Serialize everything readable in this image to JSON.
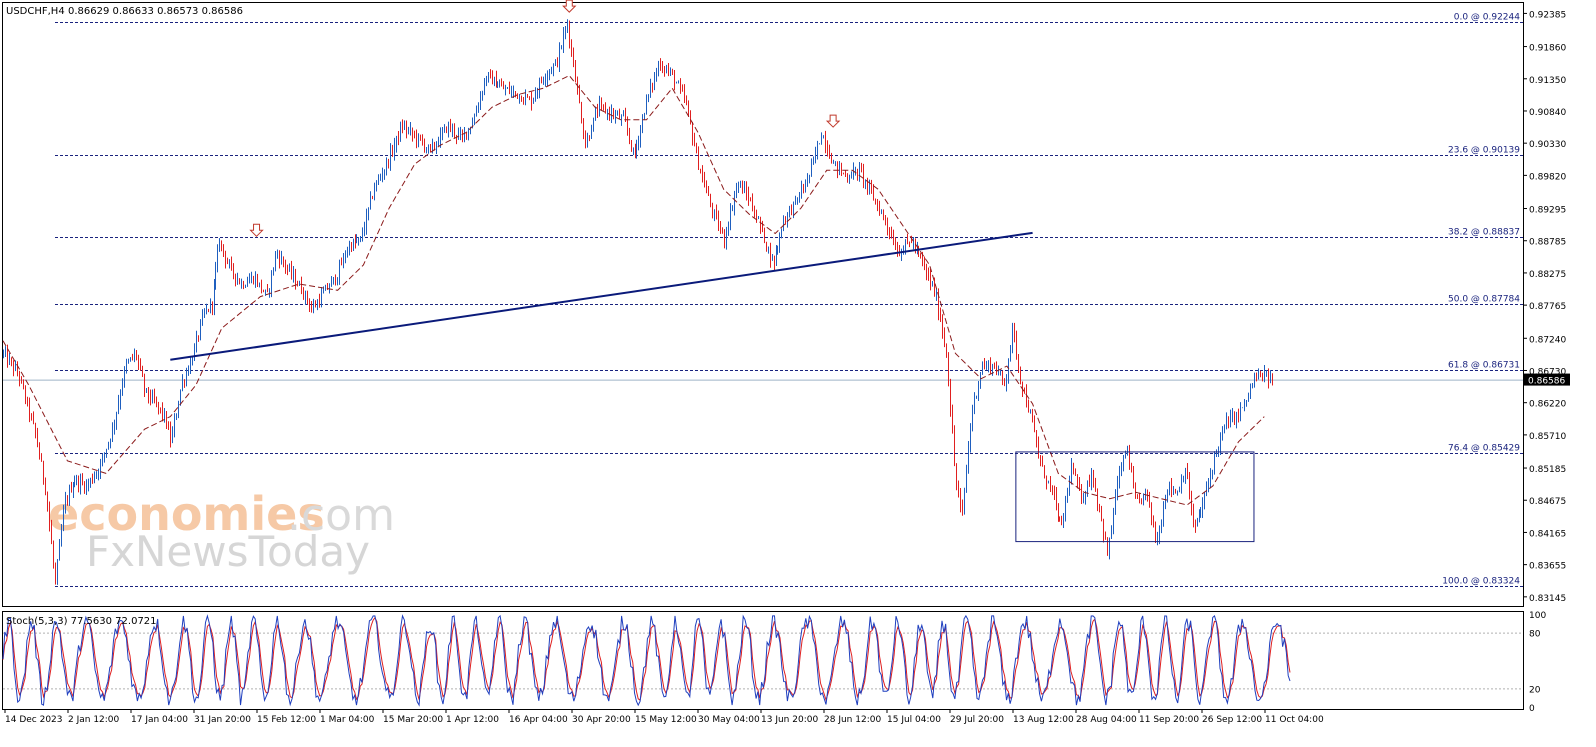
{
  "chart_data": {
    "type": "candlestick",
    "header": {
      "symbol": "USDCHF,H4",
      "ohlc": "0.86629 0.86633 0.86573 0.86586"
    },
    "price_axis": {
      "ticks": [
        "0.92385",
        "0.91860",
        "0.91350",
        "0.90840",
        "0.90330",
        "0.89820",
        "0.89295",
        "0.88785",
        "0.88275",
        "0.87765",
        "0.87240",
        "0.86730",
        "0.86220",
        "0.85710",
        "0.85185",
        "0.84675",
        "0.84165",
        "0.83655",
        "0.83145"
      ],
      "ylim": [
        0.83,
        0.9255
      ],
      "current_price": "0.86586"
    },
    "time_axis": {
      "ticks": [
        "14 Dec 2023",
        "2 Jan 12:00",
        "17 Jan 04:00",
        "31 Jan 20:00",
        "15 Feb 12:00",
        "1 Mar 04:00",
        "15 Mar 20:00",
        "1 Apr 12:00",
        "16 Apr 04:00",
        "30 Apr 20:00",
        "15 May 12:00",
        "30 May 04:00",
        "13 Jun 20:00",
        "28 Jun 12:00",
        "15 Jul 04:00",
        "29 Jul 20:00",
        "13 Aug 12:00",
        "28 Aug 04:00",
        "11 Sep 20:00",
        "26 Sep 12:00",
        "11 Oct 04:00"
      ]
    },
    "fibonacci": [
      {
        "label": "0.0 @ 0.92244",
        "price": 0.92244
      },
      {
        "label": "23.6 @ 0.90139",
        "price": 0.90139
      },
      {
        "label": "38.2 @ 0.88837",
        "price": 0.88837
      },
      {
        "label": "50.0 @ 0.87784",
        "price": 0.87784
      },
      {
        "label": "61.8 @ 0.86731",
        "price": 0.86731
      },
      {
        "label": "76.4 @ 0.85429",
        "price": 0.85429
      },
      {
        "label": "100.0 @ 0.83324",
        "price": 0.83324
      }
    ],
    "price_path": [
      [
        0,
        0.87
      ],
      [
        0.012,
        0.8665
      ],
      [
        0.025,
        0.857
      ],
      [
        0.033,
        0.848
      ],
      [
        0.04,
        0.8335
      ],
      [
        0.047,
        0.846
      ],
      [
        0.055,
        0.85
      ],
      [
        0.065,
        0.849
      ],
      [
        0.075,
        0.852
      ],
      [
        0.085,
        0.858
      ],
      [
        0.095,
        0.868
      ],
      [
        0.103,
        0.87
      ],
      [
        0.11,
        0.864
      ],
      [
        0.118,
        0.862
      ],
      [
        0.125,
        0.86
      ],
      [
        0.13,
        0.856
      ],
      [
        0.138,
        0.865
      ],
      [
        0.146,
        0.869
      ],
      [
        0.155,
        0.876
      ],
      [
        0.162,
        0.878
      ],
      [
        0.168,
        0.888
      ],
      [
        0.175,
        0.884
      ],
      [
        0.185,
        0.881
      ],
      [
        0.195,
        0.882
      ],
      [
        0.205,
        0.879
      ],
      [
        0.212,
        0.886
      ],
      [
        0.222,
        0.883
      ],
      [
        0.232,
        0.88
      ],
      [
        0.24,
        0.877
      ],
      [
        0.25,
        0.88
      ],
      [
        0.258,
        0.882
      ],
      [
        0.268,
        0.887
      ],
      [
        0.278,
        0.888
      ],
      [
        0.288,
        0.896
      ],
      [
        0.298,
        0.9
      ],
      [
        0.31,
        0.906
      ],
      [
        0.322,
        0.904
      ],
      [
        0.332,
        0.902
      ],
      [
        0.345,
        0.906
      ],
      [
        0.356,
        0.904
      ],
      [
        0.365,
        0.907
      ],
      [
        0.375,
        0.914
      ],
      [
        0.388,
        0.912
      ],
      [
        0.4,
        0.911
      ],
      [
        0.41,
        0.91
      ],
      [
        0.42,
        0.914
      ],
      [
        0.43,
        0.916
      ],
      [
        0.438,
        0.9224
      ],
      [
        0.445,
        0.913
      ],
      [
        0.452,
        0.903
      ],
      [
        0.462,
        0.909
      ],
      [
        0.472,
        0.908
      ],
      [
        0.482,
        0.907
      ],
      [
        0.49,
        0.901
      ],
      [
        0.5,
        0.91
      ],
      [
        0.51,
        0.916
      ],
      [
        0.52,
        0.914
      ],
      [
        0.53,
        0.91
      ],
      [
        0.54,
        0.9
      ],
      [
        0.55,
        0.893
      ],
      [
        0.56,
        0.888
      ],
      [
        0.57,
        0.897
      ],
      [
        0.578,
        0.895
      ],
      [
        0.588,
        0.89
      ],
      [
        0.598,
        0.884
      ],
      [
        0.606,
        0.891
      ],
      [
        0.616,
        0.894
      ],
      [
        0.626,
        0.898
      ],
      [
        0.636,
        0.905
      ],
      [
        0.645,
        0.9
      ],
      [
        0.655,
        0.898
      ],
      [
        0.665,
        0.899
      ],
      [
        0.675,
        0.895
      ],
      [
        0.685,
        0.891
      ],
      [
        0.695,
        0.886
      ],
      [
        0.705,
        0.888
      ],
      [
        0.715,
        0.884
      ],
      [
        0.725,
        0.879
      ],
      [
        0.733,
        0.87
      ],
      [
        0.74,
        0.85
      ],
      [
        0.745,
        0.844
      ],
      [
        0.752,
        0.86
      ],
      [
        0.76,
        0.868
      ],
      [
        0.77,
        0.868
      ],
      [
        0.778,
        0.865
      ],
      [
        0.784,
        0.874
      ],
      [
        0.79,
        0.866
      ],
      [
        0.798,
        0.86
      ],
      [
        0.806,
        0.852
      ],
      [
        0.815,
        0.848
      ],
      [
        0.822,
        0.842
      ],
      [
        0.83,
        0.852
      ],
      [
        0.838,
        0.847
      ],
      [
        0.846,
        0.851
      ],
      [
        0.853,
        0.844
      ],
      [
        0.858,
        0.838
      ],
      [
        0.866,
        0.85
      ],
      [
        0.873,
        0.855
      ],
      [
        0.88,
        0.846
      ],
      [
        0.888,
        0.848
      ],
      [
        0.896,
        0.84
      ],
      [
        0.904,
        0.849
      ],
      [
        0.912,
        0.848
      ],
      [
        0.918,
        0.852
      ],
      [
        0.925,
        0.842
      ],
      [
        0.932,
        0.846
      ],
      [
        0.942,
        0.854
      ],
      [
        0.95,
        0.859
      ],
      [
        0.958,
        0.86
      ],
      [
        0.965,
        0.862
      ],
      [
        0.972,
        0.866
      ],
      [
        0.98,
        0.8665
      ],
      [
        0.986,
        0.8658
      ]
    ],
    "moving_average": [
      [
        0,
        0.872
      ],
      [
        0.02,
        0.865
      ],
      [
        0.05,
        0.853
      ],
      [
        0.08,
        0.851
      ],
      [
        0.11,
        0.858
      ],
      [
        0.13,
        0.86
      ],
      [
        0.15,
        0.865
      ],
      [
        0.17,
        0.874
      ],
      [
        0.2,
        0.879
      ],
      [
        0.23,
        0.881
      ],
      [
        0.26,
        0.88
      ],
      [
        0.28,
        0.884
      ],
      [
        0.3,
        0.893
      ],
      [
        0.32,
        0.9
      ],
      [
        0.34,
        0.903
      ],
      [
        0.36,
        0.905
      ],
      [
        0.38,
        0.909
      ],
      [
        0.4,
        0.911
      ],
      [
        0.42,
        0.912
      ],
      [
        0.44,
        0.914
      ],
      [
        0.46,
        0.909
      ],
      [
        0.48,
        0.907
      ],
      [
        0.5,
        0.907
      ],
      [
        0.52,
        0.912
      ],
      [
        0.54,
        0.905
      ],
      [
        0.56,
        0.896
      ],
      [
        0.58,
        0.892
      ],
      [
        0.6,
        0.889
      ],
      [
        0.62,
        0.893
      ],
      [
        0.64,
        0.899
      ],
      [
        0.66,
        0.899
      ],
      [
        0.68,
        0.896
      ],
      [
        0.7,
        0.89
      ],
      [
        0.72,
        0.884
      ],
      [
        0.74,
        0.87
      ],
      [
        0.76,
        0.866
      ],
      [
        0.78,
        0.868
      ],
      [
        0.8,
        0.862
      ],
      [
        0.82,
        0.851
      ],
      [
        0.84,
        0.848
      ],
      [
        0.86,
        0.847
      ],
      [
        0.88,
        0.848
      ],
      [
        0.9,
        0.847
      ],
      [
        0.92,
        0.846
      ],
      [
        0.94,
        0.849
      ],
      [
        0.96,
        0.856
      ],
      [
        0.98,
        0.86
      ]
    ],
    "neckline": {
      "x": [
        0.13,
        0.8
      ],
      "y": [
        0.869,
        0.8891
      ]
    },
    "range_box": {
      "x": [
        0.787,
        0.972
      ],
      "y": [
        0.8402,
        0.8544
      ]
    },
    "arrows": [
      [
        0.197,
        0.8895
      ],
      [
        0.44,
        0.925
      ],
      [
        0.645,
        0.9068
      ]
    ],
    "stochastic": {
      "label": "Stoch(5,3,3) 77.5630 72.0721",
      "ticks": [
        "100",
        "80",
        "20",
        "0"
      ],
      "levels": [
        80,
        20
      ],
      "ylim": [
        0,
        100
      ]
    },
    "colors": {
      "bull": "#1f5fbf",
      "bear": "#e02020",
      "ma": "#8b1a1a",
      "neckline": "#0a1a7a",
      "fib": "#1a237e",
      "box": "#1a237e",
      "stoch_main": "#1f3fbf",
      "stoch_signal": "#e02020"
    }
  },
  "watermark": {
    "brand1": "economies",
    "brand2": ".com",
    "brand3": "FxNewsToday"
  }
}
